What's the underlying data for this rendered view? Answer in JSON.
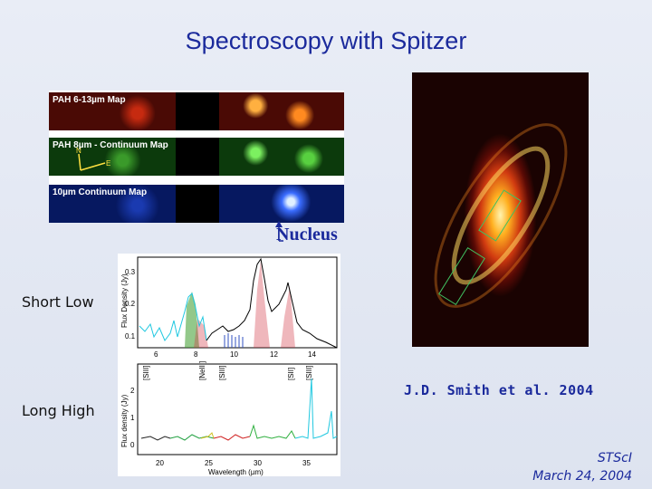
{
  "title": "Spectroscopy with Spitzer",
  "maps": {
    "pah_map": "PAH 6-13µm Map",
    "pah_cont_map": "PAH 8µm - Continuum Map",
    "cont_map": "10µm Continuum Map",
    "compass_n": "N",
    "compass_e": "E"
  },
  "nucleus_label": "Nucleus",
  "short_low_label": "Short Low",
  "long_high_label": "Long High",
  "credit": "J.D. Smith et al. 2004",
  "footer": {
    "org": "STScI",
    "date": "March 24, 2004"
  },
  "short_low_chart": {
    "ylabel": "Flux Density (Jy)",
    "yticks": [
      "0.3",
      "0.2",
      "0.1"
    ],
    "xticks": [
      "6",
      "8",
      "10",
      "12",
      "14"
    ]
  },
  "long_high_chart": {
    "ylabel": "Flux density (Jy)",
    "xlabel": "Wavelength (µm)",
    "yticks": [
      "2",
      "1",
      "0"
    ],
    "xticks": [
      "20",
      "25",
      "30",
      "35"
    ],
    "line_labels": [
      "[SIII]",
      "[NeIII]",
      "[SIII]",
      "[SII]",
      "[SIII]"
    ]
  },
  "colors": {
    "title": "#1b2a9c",
    "cyan_series": "#20c8e0",
    "pah_green": "#3a9a2a",
    "pah_red": "#d03040"
  }
}
